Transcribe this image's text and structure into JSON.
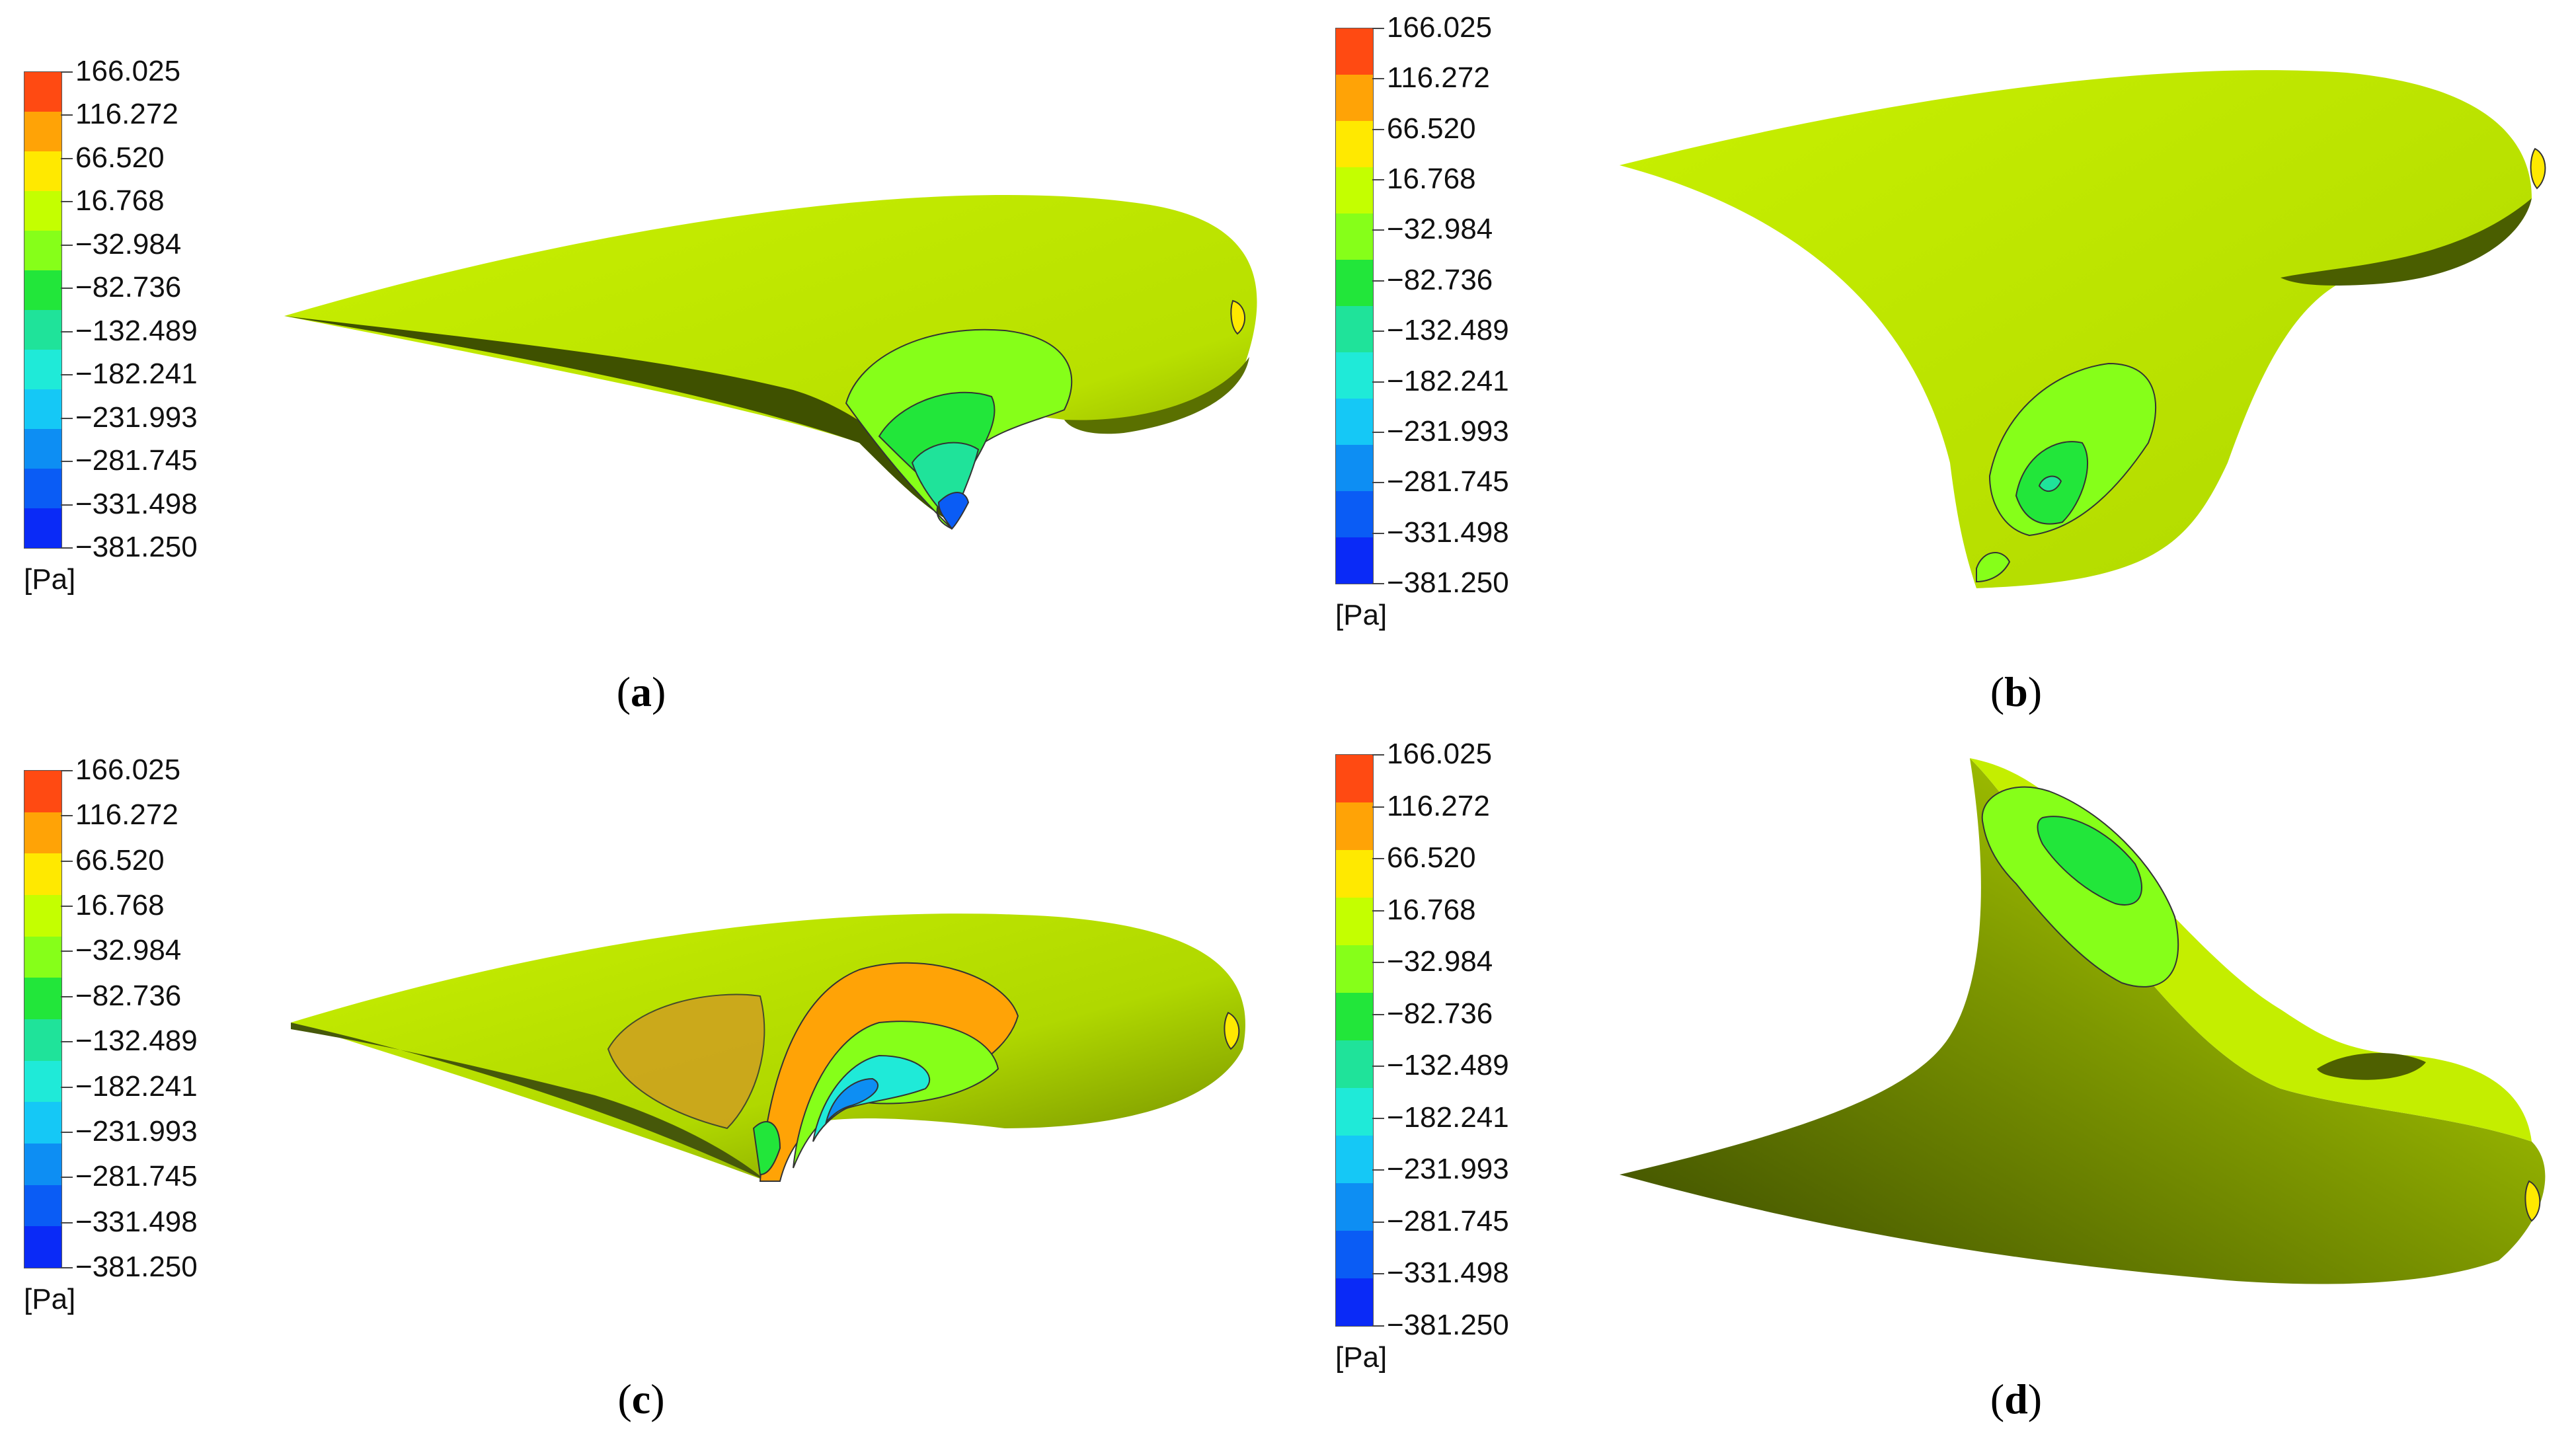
{
  "colorbar": {
    "unit": "[Pa]",
    "levels": [
      "166.025",
      "116.272",
      "66.520",
      "16.768",
      "−32.984",
      "−82.736",
      "−132.489",
      "−182.241",
      "−231.993",
      "−281.745",
      "−331.498",
      "−381.250"
    ],
    "colors": [
      "#ff4a12",
      "#ffa306",
      "#ffe900",
      "#c4ff00",
      "#86ff19",
      "#22e63a",
      "#1fe39a",
      "#1fead8",
      "#15c8f6",
      "#0d8ef3",
      "#0a5cf5",
      "#0a2af7"
    ]
  },
  "surface_colors": {
    "base": "#c8f000",
    "dark": "#3a4a00",
    "shade": "#86a000"
  },
  "panels": [
    {
      "id": "a",
      "caption_letter": "a"
    },
    {
      "id": "b",
      "caption_letter": "b"
    },
    {
      "id": "c",
      "caption_letter": "c"
    },
    {
      "id": "d",
      "caption_letter": "d"
    }
  ]
}
